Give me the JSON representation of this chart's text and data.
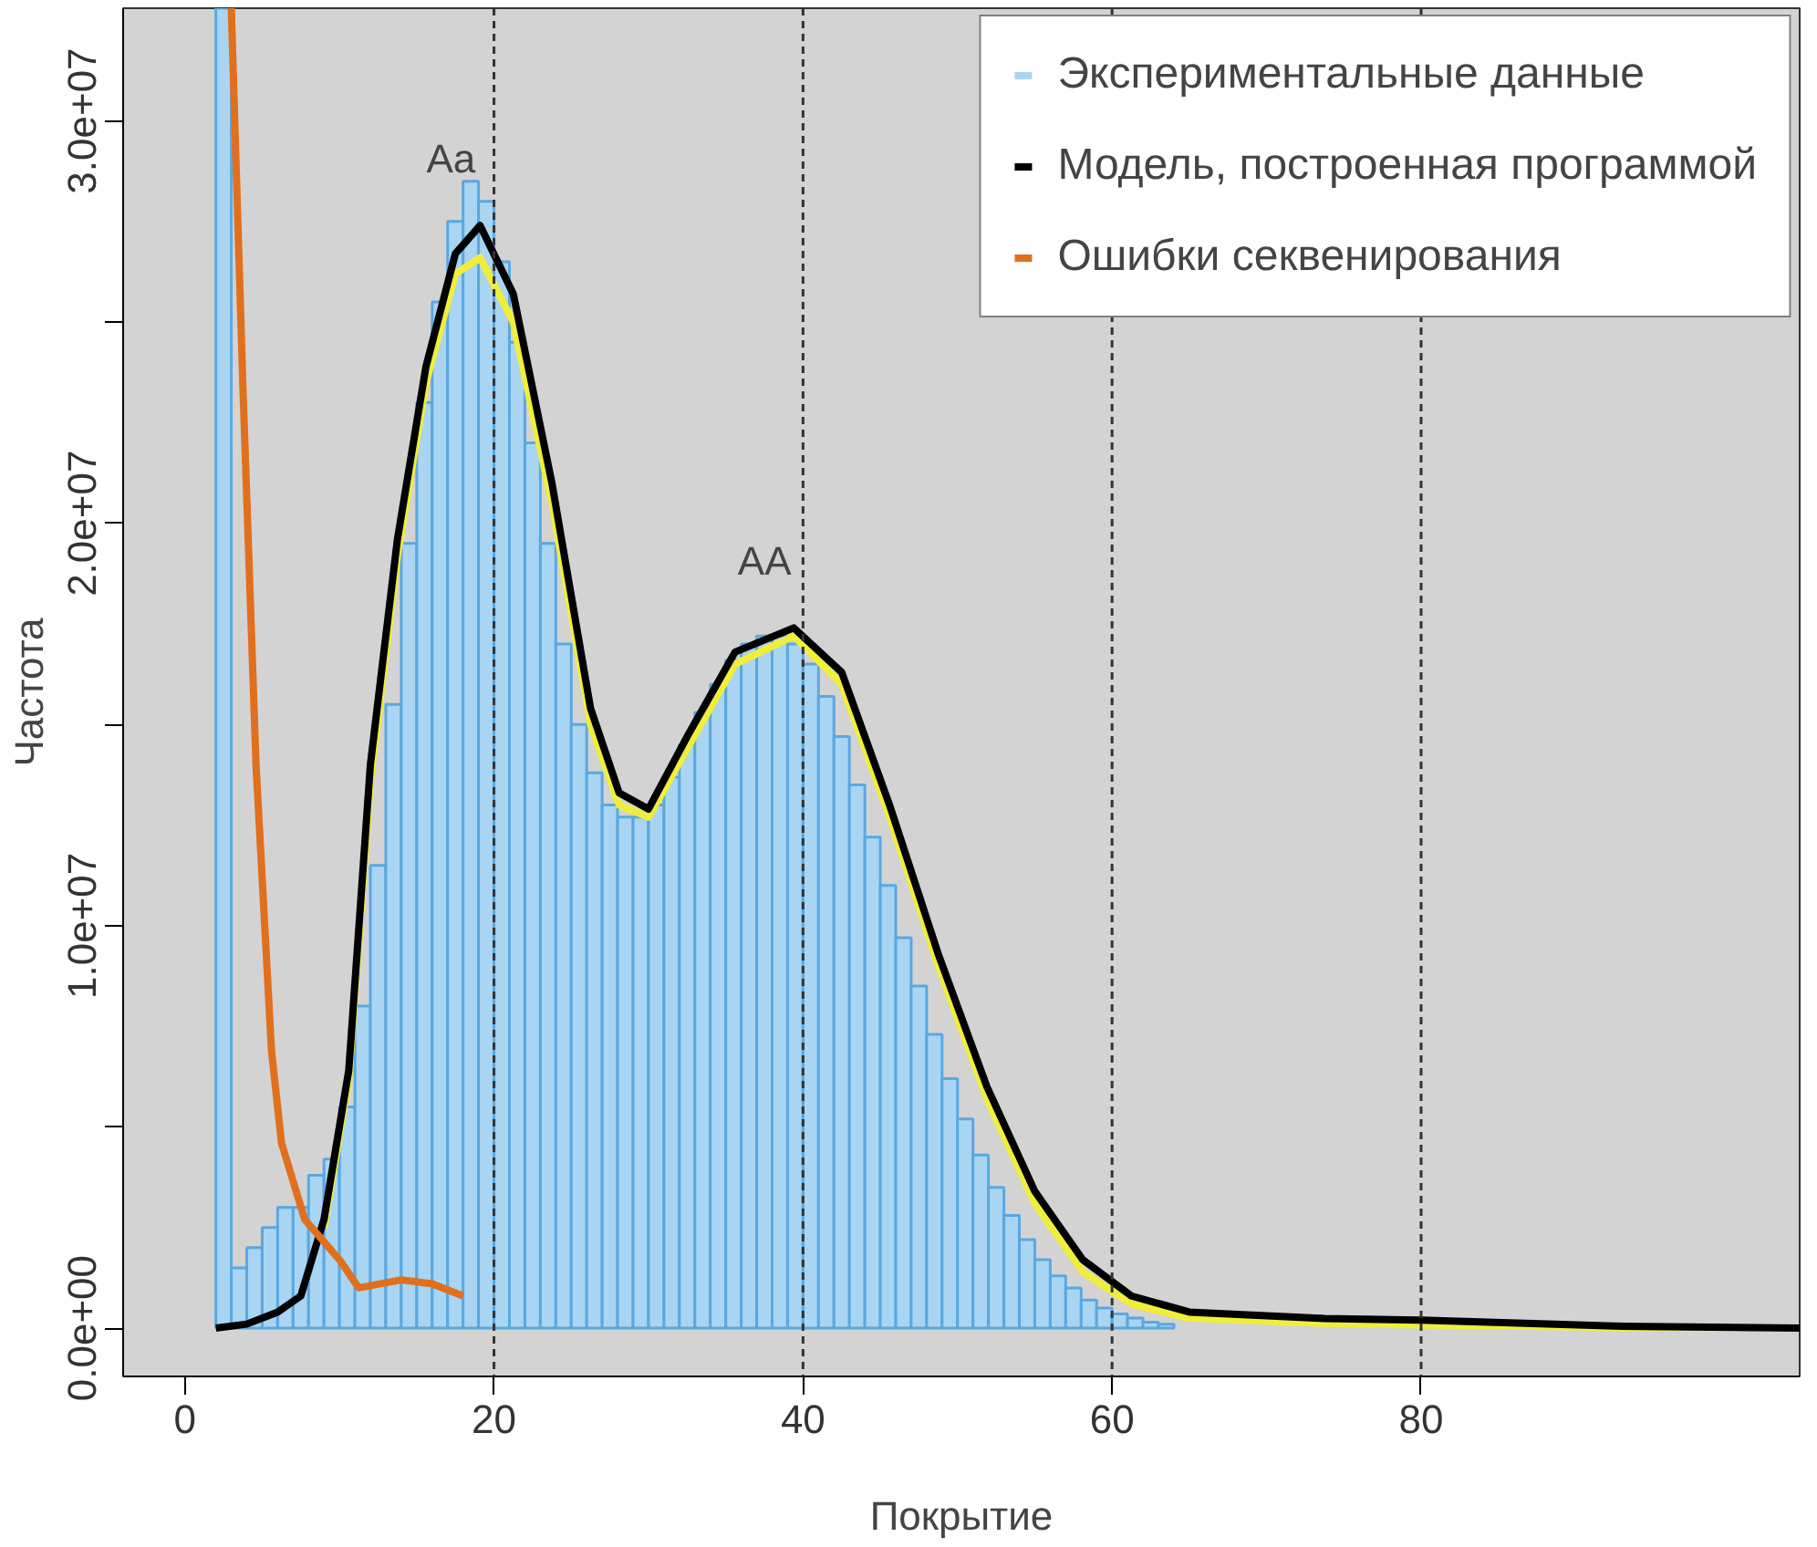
{
  "chart_data": {
    "type": "histogram",
    "xlabel": "Покрытие",
    "ylabel": "Частота",
    "xlim": [
      -4,
      104.5
    ],
    "ylim": [
      -1200000,
      32800000
    ],
    "xticks": [
      0,
      20,
      40,
      60,
      80
    ],
    "yticks": [
      {
        "value": 0,
        "label": "0.0e+00"
      },
      {
        "value": 5000000,
        "label": null
      },
      {
        "value": 10000000,
        "label": "1.0e+07"
      },
      {
        "value": 15000000,
        "label": null
      },
      {
        "value": 20000000,
        "label": "2.0e+07"
      },
      {
        "value": 25000000,
        "label": null
      },
      {
        "value": 30000000,
        "label": "3.0e+07"
      }
    ],
    "bins": [
      2,
      3,
      4,
      5,
      6,
      7,
      8,
      9,
      10,
      11,
      12,
      13,
      14,
      15,
      16,
      17,
      18,
      19,
      20,
      21,
      22,
      23,
      24,
      25,
      26,
      27,
      28,
      29,
      30,
      31,
      32,
      33,
      34,
      35,
      36,
      37,
      38,
      39,
      40,
      41,
      42,
      43,
      44,
      45,
      46,
      47,
      48,
      49,
      50,
      51,
      52,
      53,
      54,
      55,
      56,
      57,
      58,
      59,
      60,
      61,
      62,
      63,
      64
    ],
    "series": [
      {
        "name": "Экспериментальные данные",
        "color": "#a9d5f2",
        "values": [
          32800000,
          1500000,
          2000000,
          2500000,
          3000000,
          3000000,
          3800000,
          4200000,
          5500000,
          8000000,
          11500000,
          15500000,
          19500000,
          23000000,
          25500000,
          27500000,
          28500000,
          28000000,
          26500000,
          24500000,
          22000000,
          19500000,
          17000000,
          15000000,
          13800000,
          13000000,
          12700000,
          12700000,
          13000000,
          13700000,
          14500000,
          15300000,
          16000000,
          16600000,
          17000000,
          17200000,
          17200000,
          17000000,
          16500000,
          15700000,
          14700000,
          13500000,
          12200000,
          11000000,
          9700000,
          8500000,
          7300000,
          6200000,
          5200000,
          4300000,
          3500000,
          2800000,
          2200000,
          1700000,
          1300000,
          1000000,
          700000,
          500000,
          350000,
          250000,
          150000,
          100000
        ]
      },
      {
        "type": "line",
        "color": "#f0ee3a",
        "x": [
          9,
          10.6,
          12,
          13.75,
          15.6,
          17.5,
          19.1,
          21.25,
          23.75,
          26.25,
          28.1,
          30,
          32.5,
          35.6,
          39.4,
          42.5,
          45.6,
          48.75,
          51.9,
          55,
          58.1,
          61.25,
          65,
          73.75,
          80,
          92.5,
          104.5
        ],
        "values": [
          2500000,
          6200000,
          13600000,
          19200000,
          23500000,
          26200000,
          26600000,
          25000000,
          20500000,
          15000000,
          13000000,
          12700000,
          14400000,
          16500000,
          17200000,
          16000000,
          12700000,
          9000000,
          5700000,
          3100000,
          1400000,
          600000,
          250000,
          120000,
          80000,
          20000,
          0
        ]
      },
      {
        "type": "line",
        "name": "Модель, построенная программой",
        "color": "#000000",
        "x": [
          2,
          4,
          6,
          7.5,
          9,
          10.6,
          12,
          13.75,
          15.6,
          17.5,
          19.1,
          21.25,
          23.75,
          26.25,
          28.1,
          30,
          32.5,
          35.6,
          39.4,
          42.5,
          45.6,
          48.75,
          51.9,
          55,
          58.1,
          61.25,
          65,
          73.75,
          80,
          92.5,
          104.5
        ],
        "values": [
          0,
          100000,
          400000,
          800000,
          2700000,
          6400000,
          14000000,
          19600000,
          23900000,
          26700000,
          27400000,
          25700000,
          21000000,
          15400000,
          13300000,
          12900000,
          14700000,
          16800000,
          17400000,
          16300000,
          13000000,
          9300000,
          6000000,
          3400000,
          1700000,
          800000,
          400000,
          240000,
          200000,
          50000,
          0
        ]
      },
      {
        "type": "line",
        "name": "Ошибки секвенирования",
        "color": "#e0701e",
        "x": [
          3,
          3.75,
          4.6,
          5.6,
          6.25,
          7.75,
          10,
          11.25,
          14,
          16,
          18
        ],
        "values": [
          32800000,
          23400000,
          14000000,
          6900000,
          4600000,
          2700000,
          1700000,
          1000000,
          1200000,
          1100000,
          800000
        ]
      }
    ],
    "ref_lines": [
      {
        "axis": "x",
        "value": 20,
        "line_style": "dashed",
        "color": "#333333"
      },
      {
        "axis": "x",
        "value": 40,
        "line_style": "dashed",
        "color": "#333333"
      },
      {
        "axis": "x",
        "value": 60,
        "line_style": "dashed",
        "color": "#333333"
      },
      {
        "axis": "x",
        "value": 80,
        "line_style": "dashed",
        "color": "#333333"
      }
    ],
    "annotations": [
      {
        "text": "Aa",
        "x": 19.1,
        "y": 27400000
      },
      {
        "text": "AA",
        "x": 39.4,
        "y": 17400000
      }
    ],
    "legend": "top right",
    "grid": false
  }
}
